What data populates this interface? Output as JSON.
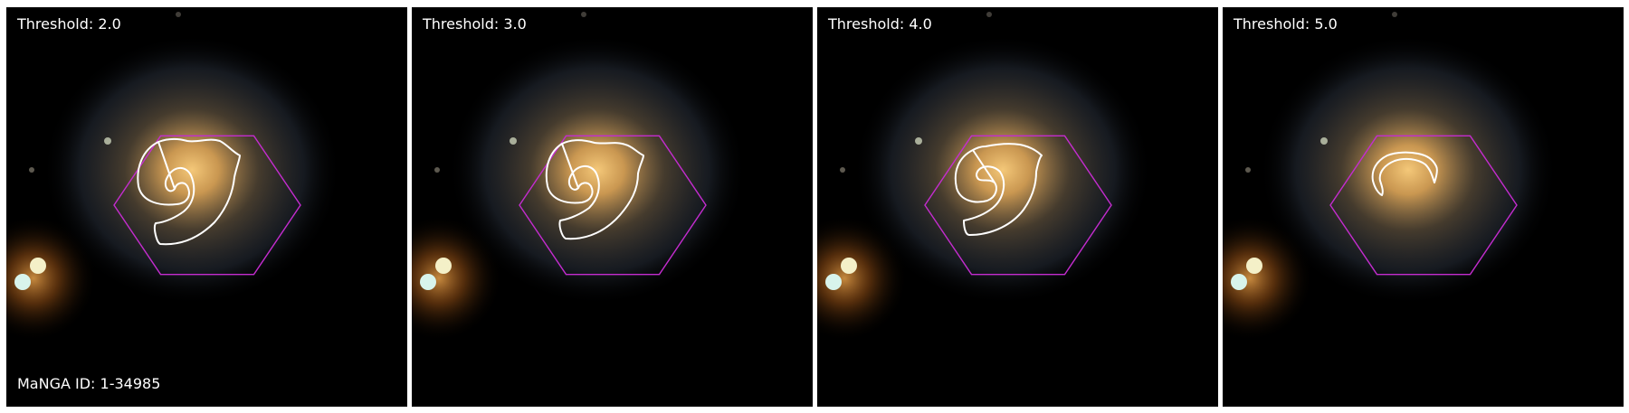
{
  "figure": {
    "panels": [
      {
        "threshold_label": "Threshold: 2.0",
        "threshold": 2.0
      },
      {
        "threshold_label": "Threshold: 3.0",
        "threshold": 3.0
      },
      {
        "threshold_label": "Threshold: 4.0",
        "threshold": 4.0
      },
      {
        "threshold_label": "Threshold: 5.0",
        "threshold": 5.0
      }
    ],
    "manga_id_label": "MaNGA ID: 1-34985",
    "colors": {
      "background": "#000000",
      "hexagon": "#c42ccf",
      "contour": "#ffffff",
      "galaxy_core": "#e0a85a",
      "star": "#f4f0c8"
    }
  }
}
